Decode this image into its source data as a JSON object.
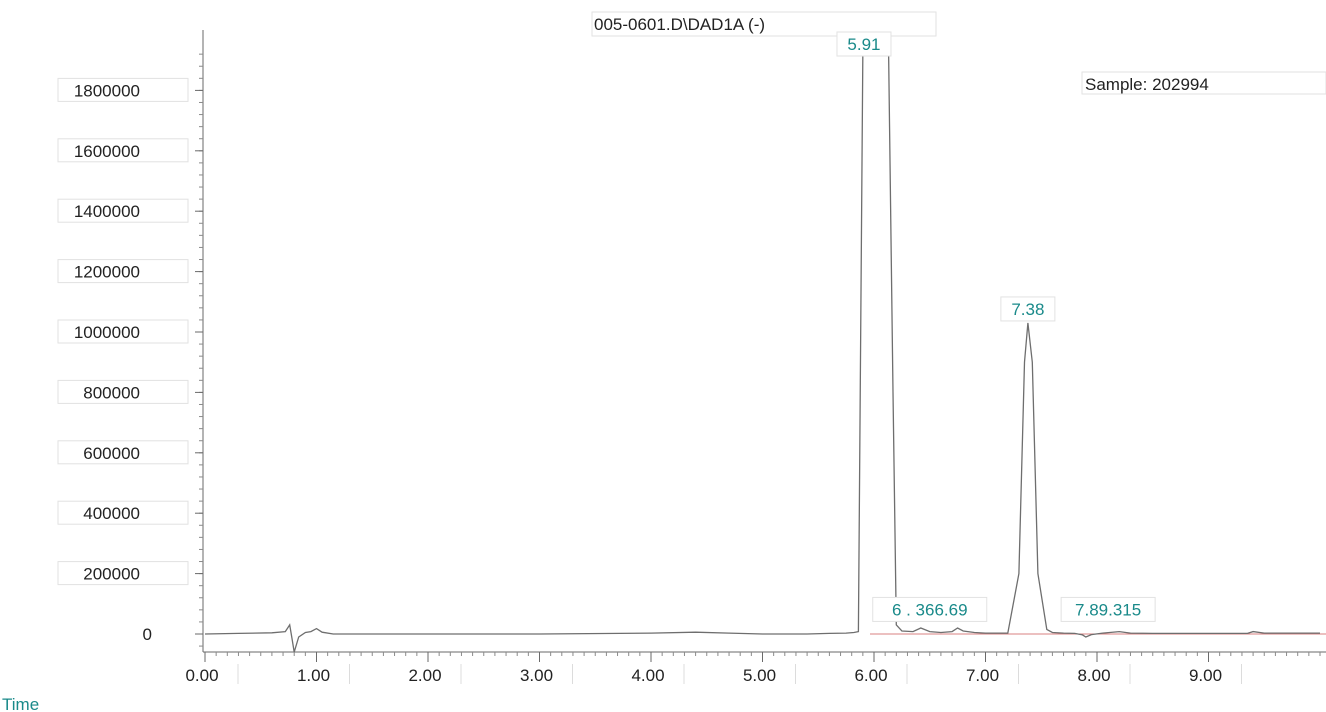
{
  "chart_data": {
    "type": "line",
    "title": "005-0601.D\\DAD1A (-)",
    "sample_label": "Sample: 202994",
    "xlabel": "Time",
    "ylabel": "",
    "xlim": [
      0.0,
      10.0
    ],
    "ylim": [
      -60000,
      1950000
    ],
    "x_ticks": [
      "0.00",
      "1.00",
      "2.00",
      "3.00",
      "4.00",
      "5.00",
      "6.00",
      "7.00",
      "8.00",
      "9.00"
    ],
    "x_tick_values": [
      0,
      1,
      2,
      3,
      4,
      5,
      6,
      7,
      8,
      9
    ],
    "y_ticks": [
      "0",
      "200000",
      "400000",
      "600000",
      "800000",
      "1000000",
      "1200000",
      "1400000",
      "1600000",
      "1800000"
    ],
    "y_tick_values": [
      0,
      200000,
      400000,
      600000,
      800000,
      1000000,
      1200000,
      1400000,
      1600000,
      1800000
    ],
    "peak_labels": [
      {
        "text": "5.91",
        "x": 5.91,
        "y": 1950000
      },
      {
        "text": "6 . 366.69",
        "x": 6.5,
        "y": 35000
      },
      {
        "text": "7.38",
        "x": 7.38,
        "y": 1030000
      },
      {
        "text": "7.89.315",
        "x": 8.1,
        "y": 35000
      }
    ],
    "series": [
      {
        "x": [
          0.0,
          0.3,
          0.6,
          0.72,
          0.76,
          0.78,
          0.8,
          0.84,
          0.9,
          0.95,
          1.0,
          1.05,
          1.15,
          1.5,
          2.0,
          3.0,
          4.0,
          4.4,
          4.7,
          5.0,
          5.4,
          5.6,
          5.75,
          5.82,
          5.86,
          5.9,
          5.95,
          6.0,
          6.05,
          6.09,
          6.13,
          6.17,
          6.2,
          6.25,
          6.35,
          6.42,
          6.5,
          6.6,
          6.7,
          6.75,
          6.8,
          6.9,
          7.0,
          7.2,
          7.3,
          7.35,
          7.38,
          7.42,
          7.47,
          7.55,
          7.6,
          7.7,
          7.8,
          7.87,
          7.9,
          7.95,
          8.05,
          8.2,
          8.3,
          8.5,
          9.0,
          9.35,
          9.4,
          9.5,
          10.0
        ],
        "y": [
          0,
          2000,
          4000,
          8000,
          30000,
          -15000,
          -60000,
          -10000,
          5000,
          8000,
          18000,
          6000,
          0,
          0,
          0,
          0,
          3000,
          6000,
          3000,
          0,
          0,
          2000,
          3000,
          5000,
          8000,
          1950000,
          1950000,
          1950000,
          1950000,
          1950000,
          1950000,
          800000,
          30000,
          10000,
          8000,
          20000,
          8000,
          5000,
          8000,
          20000,
          10000,
          5000,
          3000,
          3000,
          200000,
          900000,
          1030000,
          900000,
          200000,
          15000,
          5000,
          3000,
          2000,
          -3000,
          -10000,
          -2000,
          3000,
          8000,
          3000,
          2000,
          2000,
          2000,
          8000,
          3000,
          3000
        ]
      }
    ]
  }
}
